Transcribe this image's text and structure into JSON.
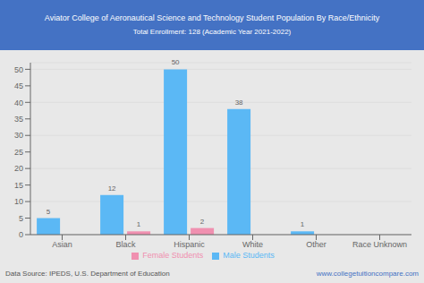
{
  "chart_data": {
    "type": "bar",
    "title": "Aviator College of Aeronautical Science and Technology Student Population By Race/Ethnicity",
    "subtitle": "Total Enrollment: 128 (Academic Year 2021-2022)",
    "categories": [
      "Asian",
      "Black",
      "Hispanic",
      "White",
      "Other",
      "Race Unknown"
    ],
    "series": [
      {
        "name": "Male Students",
        "color": "#5BB8F5",
        "values": [
          5,
          12,
          50,
          38,
          1,
          0
        ]
      },
      {
        "name": "Female Students",
        "color": "#F090B0",
        "values": [
          0,
          1,
          2,
          0,
          0,
          0
        ]
      }
    ],
    "ylim": [
      0,
      52
    ],
    "yticks": [
      0,
      5,
      10,
      15,
      20,
      25,
      30,
      35,
      40,
      45,
      50
    ],
    "grid": true,
    "legend": "bottom",
    "data_labels": true,
    "annotations": [
      "Data Source: IPEDS, U.S. Department of Education",
      "www.collegetuitioncompare.com"
    ]
  }
}
